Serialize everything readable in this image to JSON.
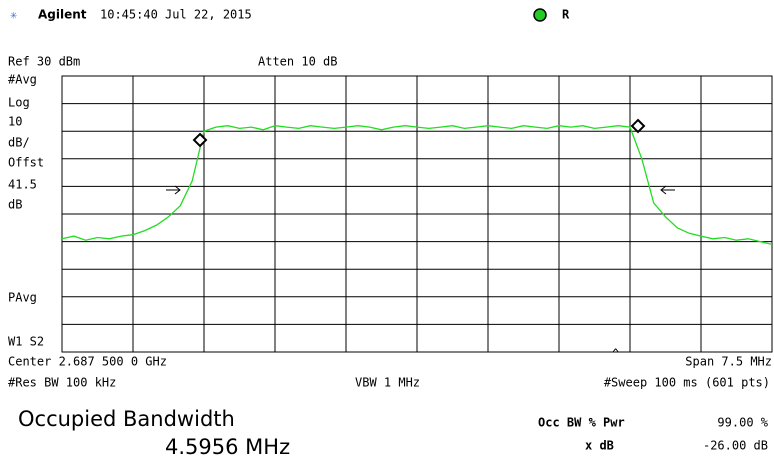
{
  "header": {
    "brand": "Agilent",
    "timestamp": "10:45:40  Jul 22, 2015",
    "status": "R"
  },
  "settings": {
    "ref": "Ref 30 dBm",
    "atten": "Atten 10 dB",
    "side_labels": [
      "#Avg",
      "Log",
      "10",
      "dB/",
      "Offst",
      "41.5",
      "dB"
    ],
    "pavg": "PAvg",
    "w1s2": "W1  S2",
    "center": "Center 2.687 500 0 GHz",
    "span": "Span 7.5 MHz",
    "res_bw": "#Res BW 100 kHz",
    "vbw": "VBW 1 MHz",
    "sweep": "#Sweep 100 ms (601 pts)"
  },
  "trace": {
    "xlim": [
      0,
      600
    ],
    "ylim": [
      -70,
      30
    ],
    "color": "#22dd22",
    "x": [
      0,
      10,
      20,
      30,
      40,
      50,
      60,
      70,
      80,
      90,
      100,
      110,
      120,
      130,
      140,
      150,
      160,
      170,
      180,
      190,
      200,
      210,
      220,
      230,
      240,
      250,
      260,
      270,
      280,
      290,
      300,
      310,
      320,
      330,
      340,
      350,
      360,
      370,
      380,
      390,
      400,
      410,
      420,
      430,
      440,
      450,
      460,
      470,
      480,
      490,
      500,
      510,
      520,
      530,
      540,
      550,
      560,
      570,
      580,
      590,
      600
    ],
    "values": [
      -29,
      -28,
      -29.5,
      -28.5,
      -29,
      -28,
      -27.5,
      -26,
      -24,
      -21,
      -17,
      -8,
      10,
      11.5,
      12,
      11,
      11.5,
      10.5,
      12,
      11.5,
      11,
      12,
      11.5,
      11,
      11.5,
      12,
      11.5,
      10.5,
      11.5,
      12,
      11.5,
      11,
      11.5,
      12,
      11,
      11.5,
      12,
      11.5,
      11,
      12,
      11.5,
      11,
      12,
      11.5,
      12,
      11,
      11.5,
      12,
      11.5,
      0,
      -16,
      -21,
      -25,
      -27,
      -28,
      -29,
      -28.5,
      -29.5,
      -29,
      -30,
      -31
    ]
  },
  "results": {
    "title": "Occupied Bandwidth",
    "value": "4.5956 MHz",
    "pwr_label": "Occ BW % Pwr",
    "pwr_value": "99.00 %",
    "xdb_label": "x dB",
    "xdb_value": "-26.00 dB"
  }
}
